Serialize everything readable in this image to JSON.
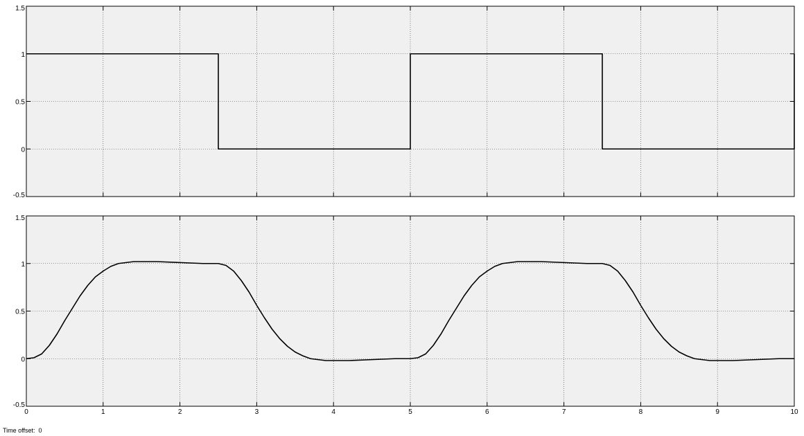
{
  "chart_data": [
    {
      "type": "line",
      "title": "",
      "xlabel": "",
      "ylabel": "",
      "xlim": [
        0,
        10
      ],
      "ylim": [
        -0.5,
        1.5
      ],
      "xticks": [
        0,
        1,
        2,
        3,
        4,
        5,
        6,
        7,
        8,
        9,
        10
      ],
      "yticks": [
        -0.5,
        0,
        0.5,
        1,
        1.5
      ],
      "xtick_labels": [
        "",
        "",
        "",
        "",
        "",
        "",
        "",
        "",
        "",
        "",
        ""
      ],
      "ytick_labels": [
        "-0.5",
        "0",
        "0.5",
        "1",
        "1.5"
      ],
      "grid": true,
      "series": [
        {
          "color": "#000000",
          "x": [
            0,
            2.5,
            2.5,
            5,
            5,
            7.5,
            7.5,
            10,
            10
          ],
          "y": [
            1,
            1,
            0,
            0,
            1,
            1,
            0,
            0,
            1
          ]
        }
      ]
    },
    {
      "type": "line",
      "title": "",
      "xlabel": "",
      "ylabel": "",
      "xlim": [
        0,
        10
      ],
      "ylim": [
        -0.5,
        1.5
      ],
      "xticks": [
        0,
        1,
        2,
        3,
        4,
        5,
        6,
        7,
        8,
        9,
        10
      ],
      "yticks": [
        -0.5,
        0,
        0.5,
        1,
        1.5
      ],
      "xtick_labels": [
        "0",
        "1",
        "2",
        "3",
        "4",
        "5",
        "6",
        "7",
        "8",
        "9",
        "10"
      ],
      "ytick_labels": [
        "-0.5",
        "0",
        "0.5",
        "1",
        "1.5"
      ],
      "grid": true,
      "series": [
        {
          "color": "#000000",
          "x": [
            0,
            0.1,
            0.2,
            0.3,
            0.4,
            0.5,
            0.6,
            0.7,
            0.8,
            0.9,
            1.0,
            1.1,
            1.2,
            1.3,
            1.4,
            1.5,
            1.7,
            2.0,
            2.3,
            2.5,
            2.6,
            2.7,
            2.8,
            2.9,
            3.0,
            3.1,
            3.2,
            3.3,
            3.4,
            3.5,
            3.6,
            3.7,
            3.8,
            3.9,
            4.0,
            4.2,
            4.5,
            4.8,
            5.0,
            5.1,
            5.2,
            5.3,
            5.4,
            5.5,
            5.6,
            5.7,
            5.8,
            5.9,
            6.0,
            6.1,
            6.2,
            6.3,
            6.4,
            6.5,
            6.7,
            7.0,
            7.3,
            7.5,
            7.6,
            7.7,
            7.8,
            7.9,
            8.0,
            8.1,
            8.2,
            8.3,
            8.4,
            8.5,
            8.6,
            8.7,
            8.8,
            8.9,
            9.0,
            9.2,
            9.5,
            9.8,
            10.0
          ],
          "y": [
            0,
            0.01,
            0.05,
            0.14,
            0.26,
            0.4,
            0.53,
            0.66,
            0.77,
            0.86,
            0.92,
            0.97,
            1.0,
            1.01,
            1.02,
            1.02,
            1.02,
            1.01,
            1.0,
            1.0,
            0.98,
            0.92,
            0.82,
            0.7,
            0.56,
            0.43,
            0.31,
            0.21,
            0.13,
            0.07,
            0.03,
            0.0,
            -0.01,
            -0.02,
            -0.02,
            -0.02,
            -0.01,
            0.0,
            0.0,
            0.01,
            0.05,
            0.14,
            0.26,
            0.4,
            0.53,
            0.66,
            0.77,
            0.86,
            0.92,
            0.97,
            1.0,
            1.01,
            1.02,
            1.02,
            1.02,
            1.01,
            1.0,
            1.0,
            0.98,
            0.92,
            0.82,
            0.7,
            0.56,
            0.43,
            0.31,
            0.21,
            0.13,
            0.07,
            0.03,
            0.0,
            -0.01,
            -0.02,
            -0.02,
            -0.02,
            -0.01,
            0.0,
            0.0
          ]
        }
      ]
    }
  ],
  "footer": {
    "time_offset_label": "Time offset:",
    "time_offset_value": "0"
  }
}
